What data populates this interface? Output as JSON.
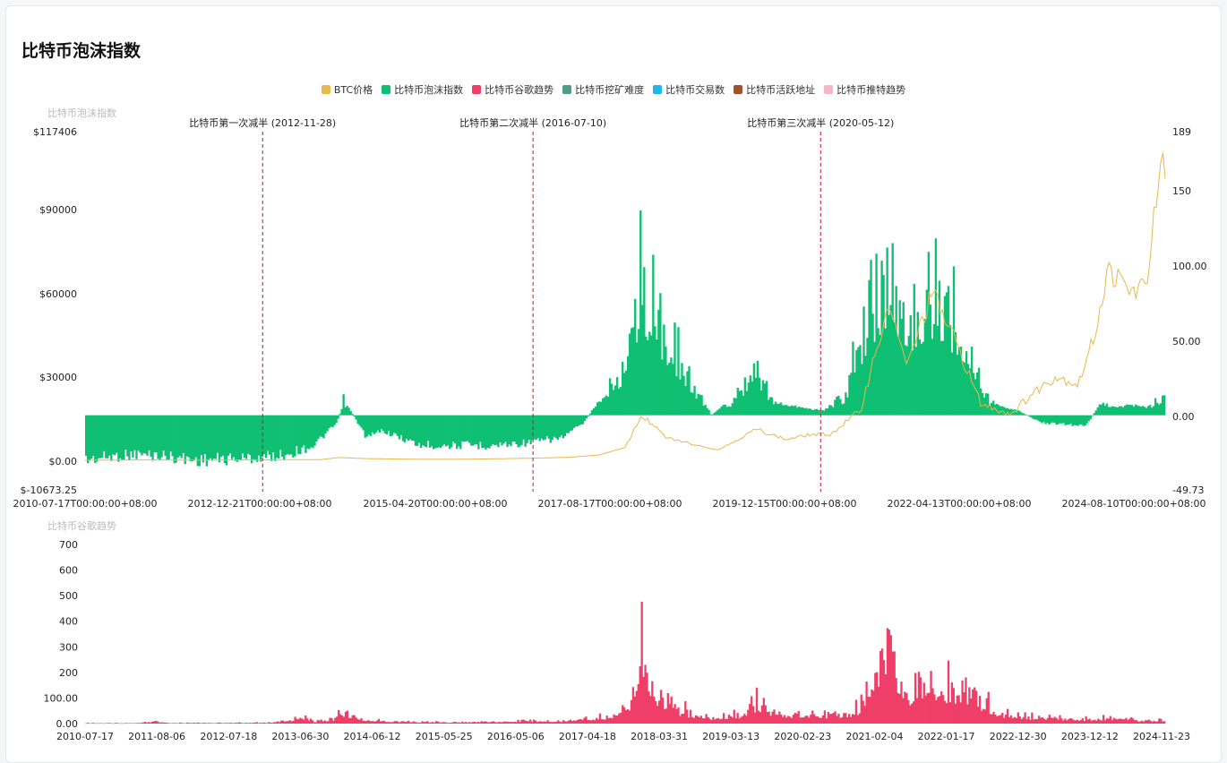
{
  "page": {
    "title": "比特币泡沫指数"
  },
  "legend": [
    {
      "label": "BTC价格",
      "color": "#e8b84a"
    },
    {
      "label": "比特币泡沫指数",
      "color": "#0fbf73"
    },
    {
      "label": "比特币谷歌趋势",
      "color": "#ef3f68"
    },
    {
      "label": "比特币挖矿难度",
      "color": "#4e9d8a"
    },
    {
      "label": "比特币交易数",
      "color": "#1fb7e8"
    },
    {
      "label": "比特币活跃地址",
      "color": "#a0522d"
    },
    {
      "label": "比特币推特趋势",
      "color": "#f6b6c6"
    }
  ],
  "chart_data": [
    {
      "type": "area",
      "panel_label": "比特币泡沫指数",
      "y_left": {
        "ticks": [
          "$117406",
          "$90000",
          "$60000",
          "$30000",
          "$0.00",
          "$-10673.25"
        ],
        "range": [
          -10673.25,
          117406
        ]
      },
      "y_right": {
        "ticks": [
          "189",
          "150",
          "100.00",
          "50.00",
          "0.00",
          "-49.73"
        ],
        "range": [
          -49.73,
          189
        ]
      },
      "x_ticks": [
        "2010-07-17T00:00:00+08:00",
        "2012-12-21T00:00:00+08:00",
        "2015-04-20T00:00:00+08:00",
        "2017-08-17T00:00:00+08:00",
        "2019-12-15T00:00:00+08:00",
        "2022-04-13T00:00:00+08:00",
        "2024-08-10T00:00:00+08:00"
      ],
      "x_range": [
        2010.54,
        2024.96
      ],
      "annotations": [
        {
          "label": "比特币第一次减半 (2012-11-28)",
          "x": 2012.91
        },
        {
          "label": "比特币第二次减半 (2016-07-10)",
          "x": 2016.52
        },
        {
          "label": "比特币第三次减半 (2020-05-12)",
          "x": 2020.36
        }
      ],
      "series": [
        {
          "name": "BTC价格",
          "axis": "left",
          "x": [
            2010.54,
            2011.0,
            2011.45,
            2011.7,
            2012.5,
            2012.9,
            2013.3,
            2013.7,
            2013.92,
            2014.3,
            2015.0,
            2015.5,
            2016.0,
            2016.5,
            2017.0,
            2017.4,
            2017.75,
            2017.97,
            2018.3,
            2018.9,
            2019.0,
            2019.5,
            2019.9,
            2020.2,
            2020.5,
            2020.9,
            2021.1,
            2021.3,
            2021.5,
            2021.85,
            2022.2,
            2022.5,
            2022.9,
            2023.2,
            2023.5,
            2023.8,
            2024.0,
            2024.2,
            2024.5,
            2024.7,
            2024.87,
            2024.93,
            2024.96
          ],
          "values": [
            0,
            1,
            30,
            3,
            7,
            13,
            120,
            150,
            900,
            500,
            250,
            250,
            420,
            650,
            960,
            1800,
            4500,
            16000,
            8000,
            4000,
            3600,
            11000,
            7300,
            9000,
            9200,
            18000,
            40000,
            55000,
            33000,
            60000,
            40000,
            20000,
            16500,
            24000,
            30000,
            27000,
            43000,
            68000,
            60000,
            62000,
            98000,
            104000,
            96000
          ]
        },
        {
          "name": "比特币泡沫指数",
          "axis": "right",
          "x": [
            2010.54,
            2010.8,
            2011.2,
            2011.6,
            2012.0,
            2012.5,
            2012.9,
            2013.1,
            2013.3,
            2013.6,
            2013.9,
            2014.0,
            2014.3,
            2014.5,
            2015.0,
            2015.5,
            2016.0,
            2016.5,
            2016.9,
            2017.2,
            2017.4,
            2017.6,
            2017.8,
            2017.95,
            2018.2,
            2018.6,
            2018.9,
            2019.2,
            2019.5,
            2019.8,
            2020.1,
            2020.4,
            2020.7,
            2020.9,
            2021.0,
            2021.2,
            2021.4,
            2021.6,
            2021.8,
            2022.0,
            2022.2,
            2022.4,
            2022.6,
            2022.8,
            2023.0,
            2023.3,
            2023.6,
            2023.9,
            2024.1,
            2024.3,
            2024.5,
            2024.7,
            2024.9,
            2024.96
          ],
          "values": [
            -30,
            -28,
            -26,
            -27,
            -30,
            -29,
            -28,
            -27,
            -25,
            -20,
            -5,
            10,
            -15,
            -10,
            -20,
            -20,
            -20,
            -18,
            -15,
            -5,
            10,
            25,
            45,
            100,
            70,
            28,
            0,
            12,
            30,
            8,
            5,
            3,
            15,
            48,
            80,
            100,
            85,
            75,
            95,
            85,
            68,
            45,
            10,
            5,
            3,
            -5,
            -6,
            -7,
            8,
            5,
            7,
            5,
            14,
            10
          ]
        }
      ]
    },
    {
      "type": "bar",
      "panel_label": "比特币谷歌趋势",
      "y_ticks": [
        "700",
        "600",
        "500",
        "400",
        "300",
        "200",
        "100.00",
        "0.00"
      ],
      "ylim": [
        0,
        700
      ],
      "x_ticks": [
        "2010-07-17",
        "2011-08-06",
        "2012-07-18",
        "2013-06-30",
        "2014-06-12",
        "2015-05-25",
        "2016-05-06",
        "2017-04-18",
        "2018-03-31",
        "2019-03-13",
        "2020-02-23",
        "2021-02-04",
        "2022-01-17",
        "2022-12-30",
        "2023-12-12",
        "2024-11-23"
      ],
      "x_range": [
        2010.54,
        2024.96
      ],
      "series": [
        {
          "name": "比特币谷歌趋势",
          "x": [
            2010.54,
            2011.2,
            2011.45,
            2011.7,
            2012.5,
            2013.0,
            2013.3,
            2013.4,
            2013.6,
            2013.85,
            2013.95,
            2014.2,
            2014.6,
            2015.0,
            2015.5,
            2016.0,
            2016.5,
            2016.9,
            2017.3,
            2017.5,
            2017.7,
            2017.85,
            2017.96,
            2018.05,
            2018.2,
            2018.5,
            2018.9,
            2019.3,
            2019.5,
            2019.8,
            2020.2,
            2020.5,
            2020.8,
            2020.95,
            2021.1,
            2021.3,
            2021.45,
            2021.6,
            2021.8,
            2021.9,
            2022.2,
            2022.5,
            2022.7,
            2022.9,
            2023.3,
            2023.6,
            2023.9,
            2024.2,
            2024.5,
            2024.8,
            2024.9,
            2024.96
          ],
          "values": [
            2,
            3,
            10,
            3,
            4,
            5,
            20,
            40,
            10,
            20,
            60,
            25,
            12,
            8,
            7,
            10,
            15,
            12,
            25,
            35,
            60,
            120,
            380,
            260,
            120,
            60,
            30,
            40,
            100,
            45,
            50,
            40,
            60,
            90,
            270,
            340,
            200,
            130,
            250,
            190,
            140,
            110,
            50,
            35,
            30,
            25,
            20,
            25,
            18,
            15,
            20,
            15
          ]
        }
      ]
    }
  ]
}
